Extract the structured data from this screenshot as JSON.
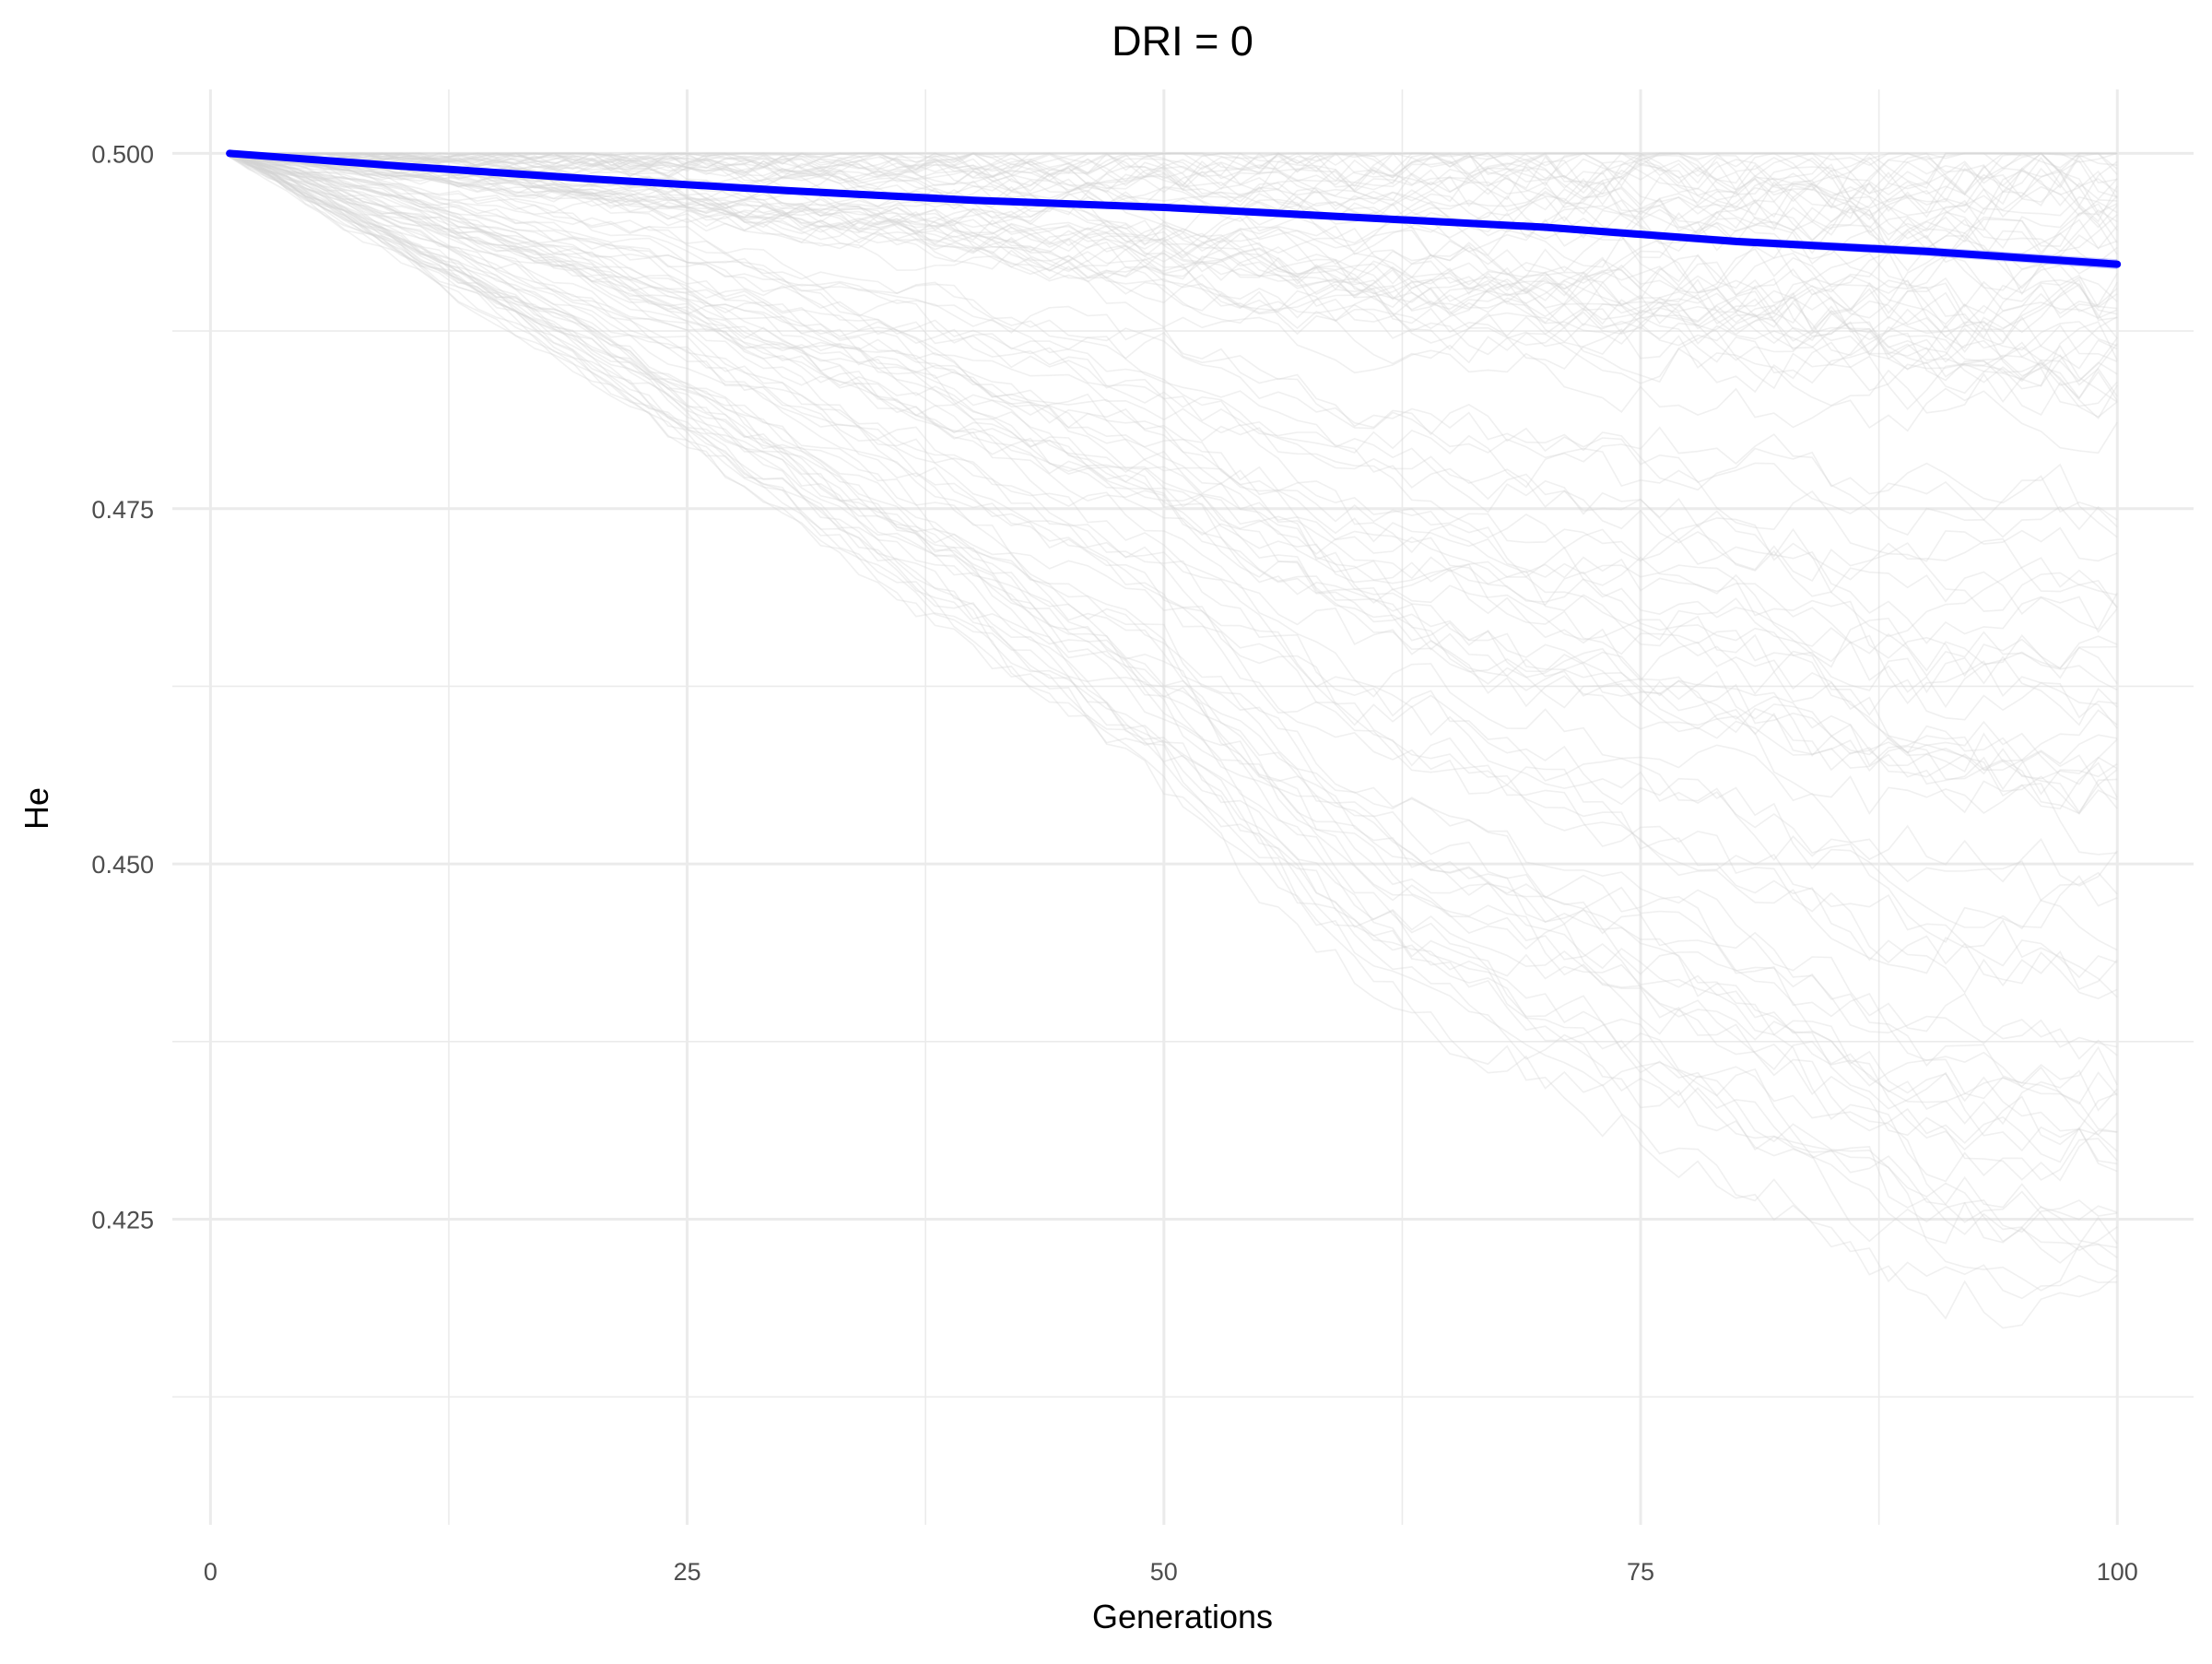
{
  "chart_data": {
    "type": "line",
    "title": "DRI = 0",
    "xlabel": "Generations",
    "ylabel": "He",
    "xlim": [
      -2,
      104
    ],
    "ylim": [
      0.4035,
      0.5045
    ],
    "x_ticks": [
      0,
      25,
      50,
      75,
      100
    ],
    "x_tick_labels": [
      "0",
      "25",
      "50",
      "75",
      "100"
    ],
    "y_ticks": [
      0.425,
      0.45,
      0.475,
      0.5
    ],
    "y_tick_labels": [
      "0.425",
      "0.450",
      "0.475",
      "0.500"
    ],
    "grid": true,
    "legend": "none",
    "colors": {
      "mean_line": "#0000ff",
      "ribbon": "#8080ff",
      "replicates": "#d3d3d3",
      "grid": "#ebebeb"
    },
    "series": [
      {
        "role": "mean",
        "x": [
          1,
          10,
          20,
          30,
          40,
          50,
          60,
          70,
          80,
          90,
          100
        ],
        "values": [
          0.5,
          0.4991,
          0.4982,
          0.4974,
          0.4967,
          0.4962,
          0.4955,
          0.4948,
          0.4938,
          0.4931,
          0.4922
        ]
      },
      {
        "role": "replicate-upper-envelope",
        "x": [
          1,
          100
        ],
        "values": [
          0.5,
          0.5
        ]
      },
      {
        "role": "replicate-lower-envelope",
        "x": [
          1,
          10,
          20,
          30,
          40,
          50,
          60,
          70,
          80,
          90,
          100
        ],
        "values": [
          0.5,
          0.4925,
          0.484,
          0.4745,
          0.465,
          0.455,
          0.4415,
          0.4345,
          0.428,
          0.42,
          0.418
        ]
      }
    ]
  }
}
